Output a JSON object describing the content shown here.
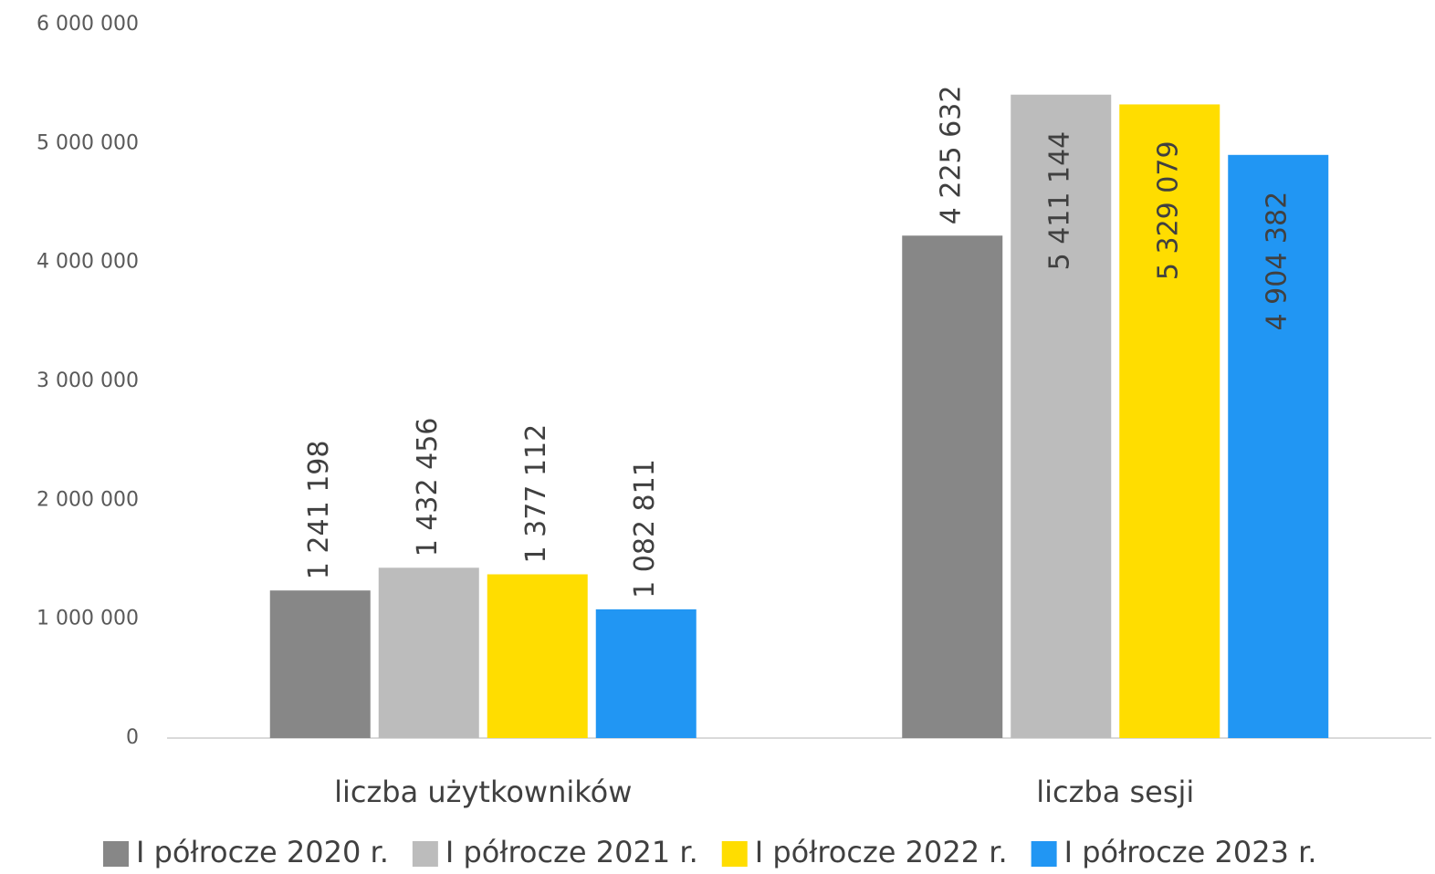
{
  "chart_data": {
    "type": "bar",
    "categories": [
      "liczba użytkowników",
      "liczba sesji"
    ],
    "series": [
      {
        "name": "I półrocze 2020 r.",
        "color": "#878787",
        "values": [
          1241198,
          4225632
        ],
        "value_labels": [
          "1 241 198",
          "4 225 632"
        ]
      },
      {
        "name": "I półrocze 2021 r.",
        "color": "#bcbcbc",
        "values": [
          1432456,
          5411144
        ],
        "value_labels": [
          "1 432 456",
          "5 411 144"
        ]
      },
      {
        "name": "I półrocze 2022 r.",
        "color": "#ffdd00",
        "values": [
          1377112,
          5329079
        ],
        "value_labels": [
          "1 377 112",
          "5 329 079"
        ]
      },
      {
        "name": "I półrocze 2023 r.",
        "color": "#2196f3",
        "values": [
          1082811,
          4904382
        ],
        "value_labels": [
          "1 082 811",
          "4 904 382"
        ]
      }
    ],
    "ylim": [
      0,
      6000000
    ],
    "yticks": [
      0,
      {
        "value": 1000000,
        "label": "1 000 000"
      },
      {
        "value": 2000000,
        "label": "2 000 000"
      },
      {
        "value": 3000000,
        "label": "3 000 000"
      },
      {
        "value": 4000000,
        "label": "4 000 000"
      },
      {
        "value": 5000000,
        "label": "5 000 000"
      },
      {
        "value": 6000000,
        "label": "6 000 000"
      }
    ],
    "grid": false,
    "legend": "bottom"
  }
}
